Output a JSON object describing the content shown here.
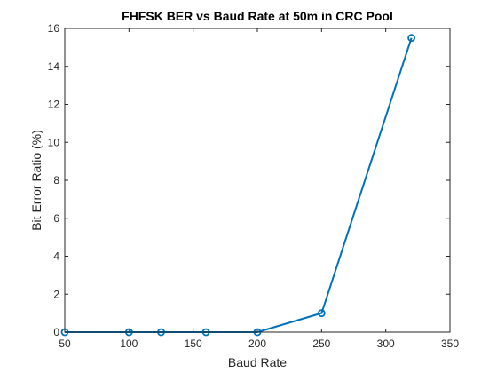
{
  "chart_data": {
    "type": "line",
    "title": "FHFSK BER vs Baud Rate at 50m in CRC Pool",
    "xlabel": "Baud Rate",
    "ylabel": "Bit Error Ratio (%)",
    "xlim": [
      50,
      350
    ],
    "ylim": [
      0,
      16
    ],
    "xticks": [
      50,
      100,
      150,
      200,
      250,
      300,
      350
    ],
    "yticks": [
      0,
      2,
      4,
      6,
      8,
      10,
      12,
      14,
      16
    ],
    "grid": false,
    "series": [
      {
        "x": [
          50,
          100,
          125,
          160,
          200,
          250,
          320
        ],
        "y": [
          0,
          0,
          0,
          0,
          0,
          1,
          15.5
        ],
        "color": "#0072BD",
        "marker": "circle"
      }
    ]
  }
}
